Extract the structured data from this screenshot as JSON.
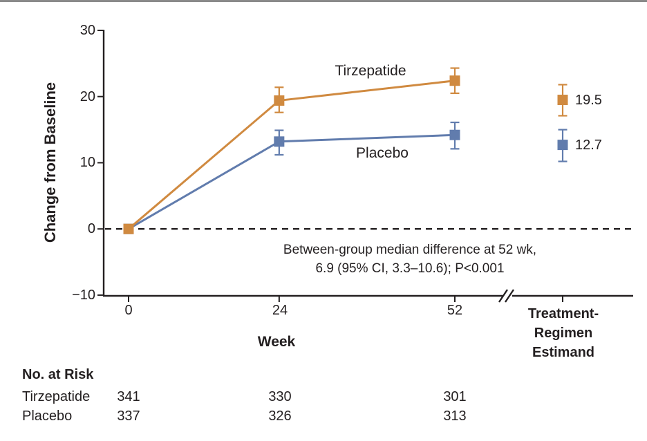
{
  "page": {
    "background": "#ffffff",
    "top_rule_color": "#8a8a8a",
    "text_color": "#231f20"
  },
  "chart_data": {
    "type": "line",
    "title": "",
    "xlabel": "Week",
    "ylabel": "Change from Baseline",
    "ylim": [
      -10,
      30
    ],
    "xlim_weeks": [
      0,
      52
    ],
    "grid": false,
    "y_tick_labels": [
      "30",
      "20",
      "10",
      "0",
      "−10"
    ],
    "x_tick_labels": [
      "0",
      "24",
      "52"
    ],
    "estimand_axis_label_lines": [
      "Treatment-",
      "Regimen",
      "Estimand"
    ],
    "baseline_dashed_at": 0,
    "x": [
      0,
      24,
      52
    ],
    "series": [
      {
        "name": "Tirzepatide",
        "color": "#d08a40",
        "values": [
          0,
          19.4,
          22.4
        ],
        "ci_low": [
          0,
          17.6,
          20.5
        ],
        "ci_high": [
          0,
          21.4,
          24.3
        ],
        "estimand": {
          "value": 19.5,
          "ci_low": 17.1,
          "ci_high": 21.8,
          "label": "19.5"
        }
      },
      {
        "name": "Placebo",
        "color": "#617cad",
        "values": [
          0,
          13.2,
          14.2
        ],
        "ci_low": [
          0,
          11.2,
          12.1
        ],
        "ci_high": [
          0,
          14.9,
          16.1
        ],
        "estimand": {
          "value": 12.7,
          "ci_low": 10.2,
          "ci_high": 15.0,
          "label": "12.7"
        }
      }
    ],
    "annotation_lines": [
      "Between-group median difference at 52 wk,",
      "6.9 (95% CI, 3.3–10.6); P<0.001"
    ],
    "legend_position": "inline"
  },
  "risk_table": {
    "header": "No. at Risk",
    "rows": [
      {
        "label": "Tirzepatide",
        "values": [
          "341",
          "330",
          "301"
        ]
      },
      {
        "label": "Placebo",
        "values": [
          "337",
          "326",
          "313"
        ]
      }
    ]
  }
}
